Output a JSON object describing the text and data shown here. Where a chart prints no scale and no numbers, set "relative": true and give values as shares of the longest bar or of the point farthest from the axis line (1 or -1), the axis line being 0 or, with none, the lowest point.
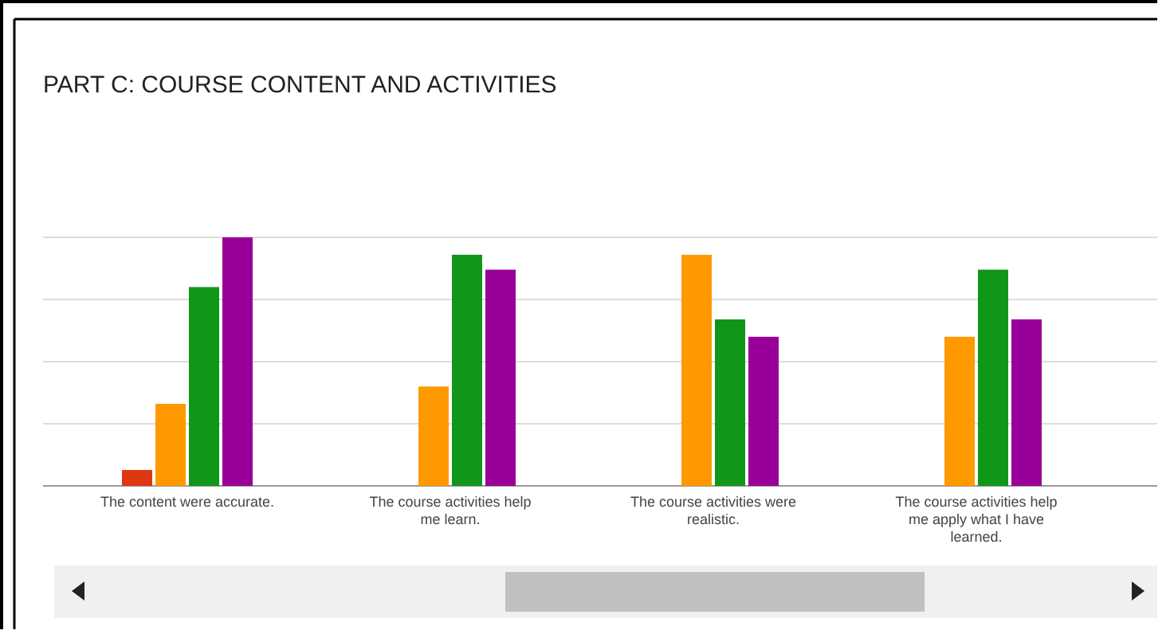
{
  "chart_data": {
    "type": "bar",
    "title": "PART C: COURSE CONTENT AND ACTIVITIES",
    "relative": true,
    "grid": true,
    "categories": [
      "The content were accurate.",
      "The course activities help me learn.",
      "The course activities were realistic.",
      "The course activities help me apply what I have learned."
    ],
    "series": [
      {
        "color": "#dc3912",
        "values": [
          0.064,
          0,
          0,
          0
        ]
      },
      {
        "color": "#ff9900",
        "values": [
          0.33,
          0.4,
          0.93,
          0.6
        ]
      },
      {
        "color": "#109618",
        "values": [
          0.8,
          0.93,
          0.67,
          0.87
        ]
      },
      {
        "color": "#990099",
        "values": [
          1,
          0.87,
          0.6,
          0.67
        ]
      }
    ]
  }
}
